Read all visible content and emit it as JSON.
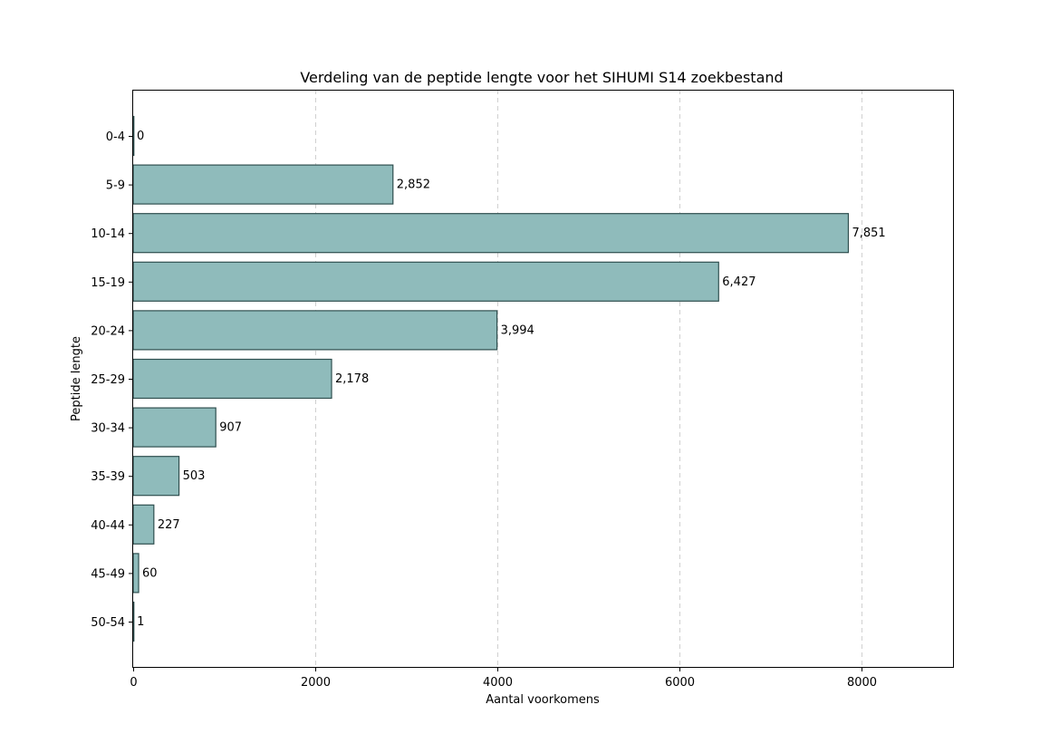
{
  "chart_data": {
    "type": "bar",
    "orientation": "horizontal",
    "title": "Verdeling van de peptide lengte voor het SIHUMI S14 zoekbestand",
    "xlabel": "Aantal voorkomens",
    "ylabel": "Peptide lengte",
    "categories": [
      "0-4",
      "5-9",
      "10-14",
      "15-19",
      "20-24",
      "25-29",
      "30-34",
      "35-39",
      "40-44",
      "45-49",
      "50-54"
    ],
    "values": [
      0,
      2852,
      7851,
      6427,
      3994,
      2178,
      907,
      503,
      227,
      60,
      1
    ],
    "data_labels": [
      "0",
      "2,852",
      "7,851",
      "6,427",
      "3,994",
      "2,178",
      "907",
      "503",
      "227",
      "60",
      "1"
    ],
    "xlim": [
      0,
      9000
    ],
    "xticks": [
      0,
      2000,
      4000,
      6000,
      8000
    ],
    "grid": "x-dashed",
    "colors": {
      "bar_fill": "#8fbbbb",
      "bar_edge": "#2f4f4f",
      "grid": "#d0d0d0"
    }
  }
}
